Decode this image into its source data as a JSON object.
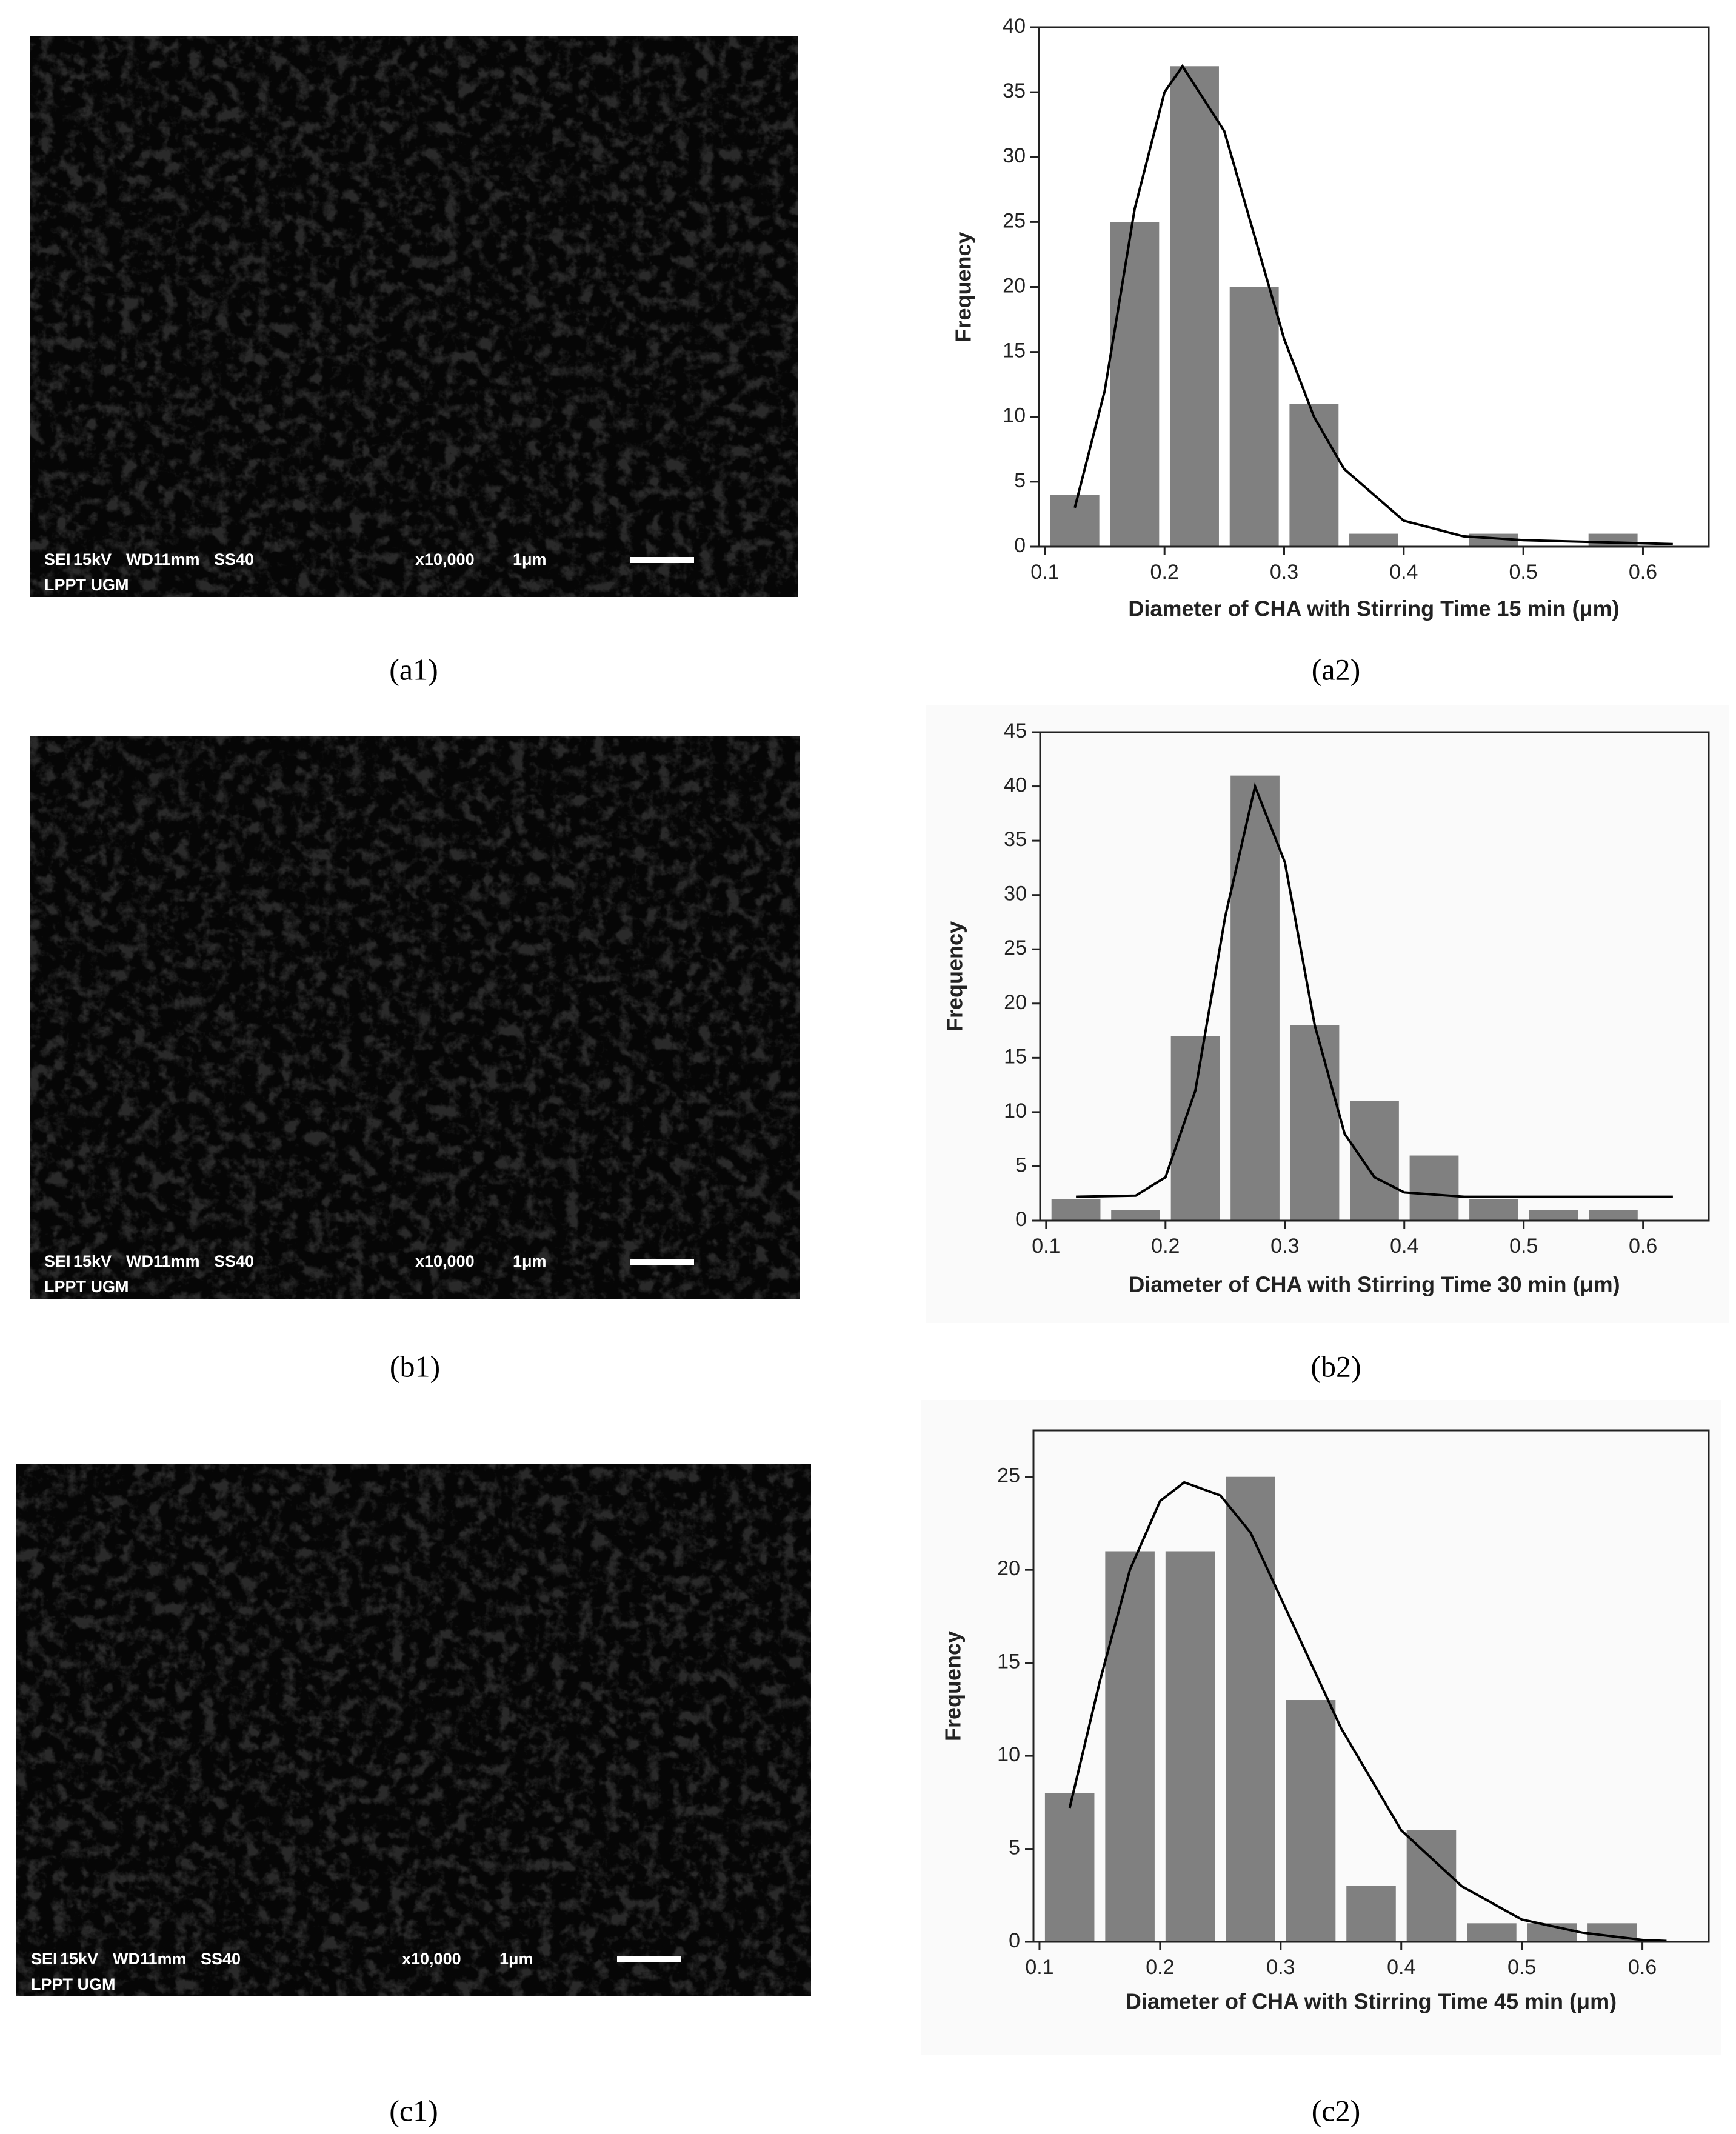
{
  "chart_data": [
    {
      "type": "histogram",
      "panel_label": "(a2)",
      "x_label": "Diameter of CHA with Stirring Time 15 min (μm)",
      "y_label": "Frequency",
      "bins": [
        0.1,
        0.15,
        0.2,
        0.25,
        0.3,
        0.35,
        0.4,
        0.45,
        0.5,
        0.55,
        0.6
      ],
      "values": [
        4,
        25,
        37,
        20,
        11,
        1,
        0,
        1,
        0,
        1
      ],
      "color": "#808080",
      "fit": {
        "color": "#000000",
        "x": [
          0.125,
          0.15,
          0.175,
          0.2,
          0.215,
          0.25,
          0.275,
          0.3,
          0.325,
          0.35,
          0.4,
          0.45,
          0.5,
          0.625
        ],
        "values": [
          3,
          12,
          26,
          35,
          37,
          32,
          24,
          16,
          10,
          6,
          2,
          0.8,
          0.5,
          0.2
        ]
      },
      "xlim": [
        0.095,
        0.655
      ],
      "xticks": [
        0.1,
        0.2,
        0.3,
        0.4,
        0.5,
        0.6
      ],
      "ylim": [
        0,
        40
      ],
      "yticks": [
        0,
        5,
        10,
        15,
        20,
        25,
        30,
        35,
        40
      ]
    },
    {
      "type": "histogram",
      "panel_label": "(b2)",
      "x_label": "Diameter of CHA with Stirring Time 30 min (μm)",
      "y_label": "Frequency",
      "bins": [
        0.1,
        0.15,
        0.2,
        0.25,
        0.3,
        0.35,
        0.4,
        0.45,
        0.5,
        0.55,
        0.6
      ],
      "values": [
        2,
        1,
        17,
        41,
        18,
        11,
        6,
        2,
        1,
        1
      ],
      "color": "#808080",
      "fit": {
        "color": "#000000",
        "x": [
          0.125,
          0.175,
          0.2,
          0.225,
          0.25,
          0.275,
          0.3,
          0.325,
          0.35,
          0.375,
          0.4,
          0.45,
          0.625
        ],
        "values": [
          2.2,
          2.3,
          4,
          12,
          28,
          40,
          33,
          18,
          8,
          4,
          2.6,
          2.2,
          2.2
        ]
      },
      "xlim": [
        0.095,
        0.655
      ],
      "xticks": [
        0.1,
        0.2,
        0.3,
        0.4,
        0.5,
        0.6
      ],
      "ylim": [
        0,
        45
      ],
      "yticks": [
        0,
        5,
        10,
        15,
        20,
        25,
        30,
        35,
        40,
        45
      ]
    },
    {
      "type": "histogram",
      "panel_label": "(c2)",
      "x_label": "Diameter of CHA with Stirring Time 45 min (μm)",
      "y_label": "Frequency",
      "bins": [
        0.1,
        0.15,
        0.2,
        0.25,
        0.3,
        0.35,
        0.4,
        0.45,
        0.5,
        0.55,
        0.6
      ],
      "values": [
        8,
        21,
        21,
        25,
        13,
        3,
        6,
        1,
        1,
        1
      ],
      "color": "#808080",
      "fit": {
        "color": "#000000",
        "x": [
          0.125,
          0.15,
          0.175,
          0.2,
          0.22,
          0.25,
          0.275,
          0.3,
          0.325,
          0.35,
          0.4,
          0.45,
          0.5,
          0.55,
          0.6,
          0.62
        ],
        "values": [
          7.2,
          14,
          20,
          23.7,
          24.7,
          24,
          22,
          18.5,
          15,
          11.5,
          6,
          3,
          1.2,
          0.5,
          0.1,
          0.05
        ]
      },
      "xlim": [
        0.095,
        0.655
      ],
      "xticks": [
        0.1,
        0.2,
        0.3,
        0.4,
        0.5,
        0.6
      ],
      "ylim": [
        0,
        27.5
      ],
      "yticks": [
        0,
        5,
        10,
        15,
        20,
        25
      ]
    }
  ],
  "images": [
    {
      "panel_label": "(a1)",
      "caption": [
        "SEI",
        "15kV",
        "WD11mm",
        "SS40",
        "x10,000",
        "1μm",
        "LPPT UGM"
      ]
    },
    {
      "panel_label": "(b1)",
      "caption": [
        "SEI",
        "15kV",
        "WD11mm",
        "SS40",
        "x10,000",
        "1μm",
        "LPPT UGM"
      ]
    },
    {
      "panel_label": "(c1)",
      "caption": [
        "SEI",
        "15kV",
        "WD11mm",
        "SS40",
        "x10,000",
        "1μm",
        "LPPT UGM"
      ]
    }
  ]
}
